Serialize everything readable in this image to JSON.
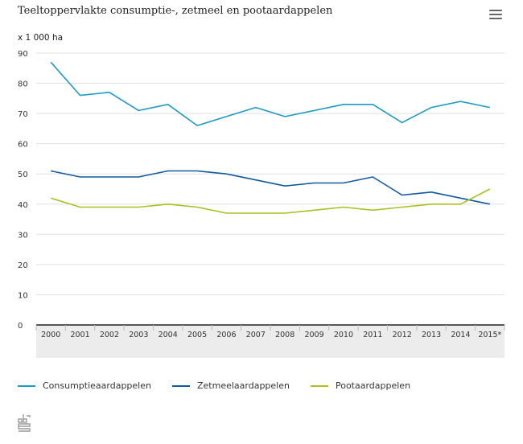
{
  "header": {
    "title": "Teeltoppervlakte consumptie-, zetmeel en pootaardappelen",
    "unit": "x 1 000 ha",
    "menu_icon": "hamburger-menu-icon"
  },
  "colors": {
    "consumptie": "#1a9bc6",
    "zetmeel": "#0f5aa0",
    "poot": "#a9c21f",
    "grid": "#e0e0e0",
    "axis": "#222222",
    "xband": "#ececec"
  },
  "chart_data": {
    "type": "line",
    "title": "Teeltoppervlakte consumptie-, zetmeel en pootaardappelen",
    "ylabel": "x 1 000 ha",
    "xlabel": "",
    "ylim": [
      0,
      90
    ],
    "yticks": [
      "0",
      "10",
      "20",
      "30",
      "40",
      "50",
      "60",
      "70",
      "80",
      "90"
    ],
    "grid": true,
    "legend_position": "bottom-left",
    "categories": [
      "2000",
      "2001",
      "2002",
      "2003",
      "2004",
      "2005",
      "2006",
      "2007",
      "2008",
      "2009",
      "2010",
      "2011",
      "2012",
      "2013",
      "2014",
      "2015*"
    ],
    "series": [
      {
        "name": "Consumptieaardappelen",
        "color": "#1a9bc6",
        "values": [
          87,
          76,
          77,
          71,
          73,
          66,
          69,
          72,
          69,
          71,
          73,
          73,
          67,
          72,
          74,
          72
        ]
      },
      {
        "name": "Zetmeelaardappelen",
        "color": "#0f5aa0",
        "values": [
          51,
          49,
          49,
          49,
          51,
          51,
          50,
          48,
          46,
          47,
          47,
          49,
          43,
          44,
          42,
          40
        ]
      },
      {
        "name": "Pootaardappelen",
        "color": "#a9c21f",
        "values": [
          42,
          39,
          39,
          39,
          40,
          39,
          37,
          37,
          37,
          38,
          39,
          38,
          39,
          40,
          40,
          45
        ]
      }
    ]
  },
  "legend": [
    {
      "label": "Consumptieaardappelen"
    },
    {
      "label": "Zetmeelaardappelen"
    },
    {
      "label": "Pootaardappelen"
    }
  ],
  "footer": {
    "logo_icon": "cbs-logo-icon",
    "logo_text": "cbs"
  }
}
